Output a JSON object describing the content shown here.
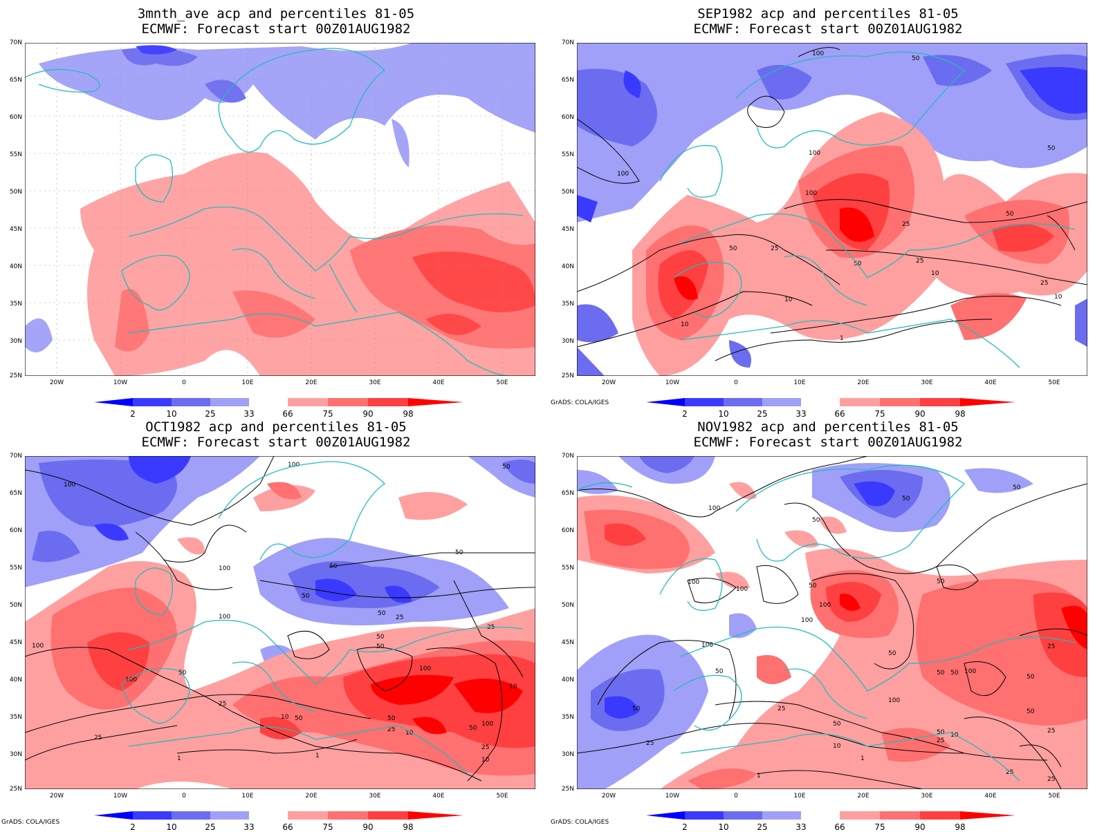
{
  "panels": [
    {
      "id": "p1",
      "title_line1": "3mnth_ave acp and percentiles 81-05",
      "title_line2": "ECMWF: Forecast start 00Z01AUG1982",
      "credit": ""
    },
    {
      "id": "p2",
      "title_line1": "SEP1982 acp and percentiles 81-05",
      "title_line2": "ECMWF: Forecast start 00Z01AUG1982",
      "credit": "GrADS: COLA/IGES"
    },
    {
      "id": "p3",
      "title_line1": "OCT1982 acp and percentiles 81-05",
      "title_line2": "ECMWF: Forecast start 00Z01AUG1982",
      "credit": "GrADS: COLA/IGES"
    },
    {
      "id": "p4",
      "title_line1": "NOV1982 acp and percentiles 81-05",
      "title_line2": "ECMWF: Forecast start 00Z01AUG1982",
      "credit": "GrADS: COLA/IGES"
    }
  ],
  "lat_labels": [
    "70N",
    "65N",
    "60N",
    "55N",
    "50N",
    "45N",
    "40N",
    "35N",
    "30N",
    "25N"
  ],
  "lon_labels": [
    "20W",
    "10W",
    "0",
    "10E",
    "20E",
    "30E",
    "40E",
    "50E"
  ],
  "colorbar": {
    "labels": [
      "2",
      "10",
      "25",
      "33",
      "66",
      "75",
      "90",
      "98"
    ],
    "colors": [
      "#0000ff",
      "#3a3aff",
      "#6c6cf0",
      "#a0a0f8",
      "#ffffff",
      "#ffa0a0",
      "#ff7070",
      "#ff4040",
      "#ff0000"
    ]
  },
  "palette": {
    "coast": "#22bbbb",
    "contour": "#000000",
    "frame": "#000000"
  }
}
